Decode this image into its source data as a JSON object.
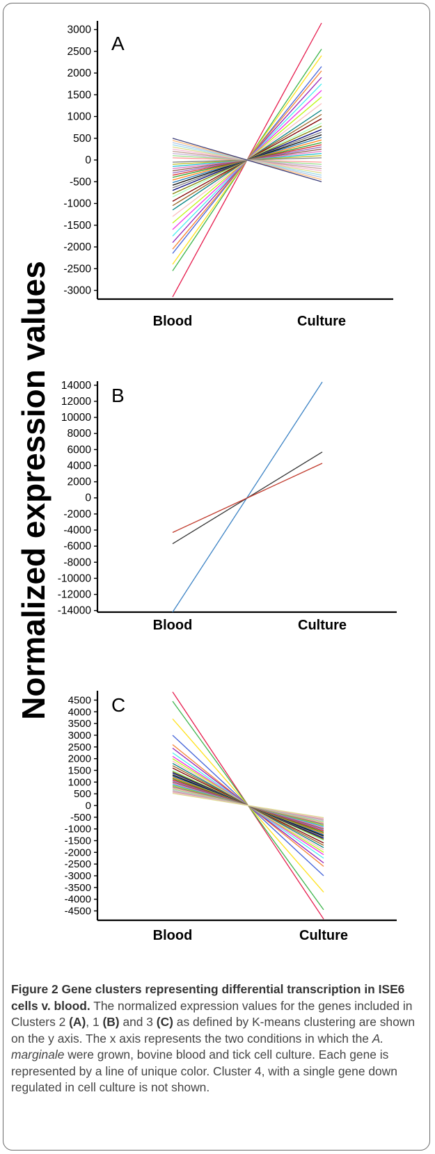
{
  "ylabel": "Normalized expression values",
  "charts": [
    {
      "panel": "A",
      "type": "line",
      "categories": [
        "Blood",
        "Culture"
      ],
      "ylim": [
        -3200,
        3200
      ],
      "ticks": [
        "3000",
        "2500",
        "2000",
        "1500",
        "1000",
        "500",
        "0",
        "-500",
        "-1000",
        "-1500",
        "-2000",
        "-2500",
        "-3000"
      ],
      "tick_values": [
        3000,
        2500,
        2000,
        1500,
        1000,
        500,
        0,
        -500,
        -1000,
        -1500,
        -2000,
        -2500,
        -3000
      ],
      "series_note": "many gene lines crossing at zero",
      "endpoints_culture": [
        3150,
        2550,
        2400,
        2150,
        2050,
        1900,
        1750,
        1600,
        1450,
        1300,
        1150,
        1050,
        950,
        850,
        780,
        700,
        640,
        580,
        520,
        460,
        400,
        350,
        300,
        250,
        200,
        150,
        100,
        50,
        -50,
        -100,
        -150,
        -200,
        -250,
        -300,
        -350,
        -400,
        -450,
        -500
      ]
    },
    {
      "panel": "B",
      "type": "line",
      "categories": [
        "Blood",
        "Culture"
      ],
      "ylim": [
        -14200,
        14500
      ],
      "ticks": [
        "14000",
        "12000",
        "10000",
        "8000",
        "6000",
        "4000",
        "2000",
        "0",
        "-2000",
        "-4000",
        "-6000",
        "-8000",
        "-10000",
        "-12000",
        "-14000"
      ],
      "tick_values": [
        14000,
        12000,
        10000,
        8000,
        6000,
        4000,
        2000,
        0,
        -2000,
        -4000,
        -6000,
        -8000,
        -10000,
        -12000,
        -14000
      ],
      "series": [
        {
          "color": "#3b82c4",
          "values": [
            -14200,
            14400
          ]
        },
        {
          "color": "#333333",
          "values": [
            -5700,
            5700
          ]
        },
        {
          "color": "#c0392b",
          "values": [
            -4300,
            4300
          ]
        }
      ]
    },
    {
      "panel": "C",
      "type": "line",
      "categories": [
        "Blood",
        "Culture"
      ],
      "ylim": [
        -4900,
        4900
      ],
      "ticks": [
        "4500",
        "4000",
        "3500",
        "3000",
        "2500",
        "2000",
        "1500",
        "1000",
        "500",
        "0",
        "-500",
        "-1000",
        "-1500",
        "-2000",
        "-2500",
        "-3000",
        "-3500",
        "-4000",
        "-4500"
      ],
      "tick_values": [
        4500,
        4000,
        3500,
        3000,
        2500,
        2000,
        1500,
        1000,
        500,
        0,
        -500,
        -1000,
        -1500,
        -2000,
        -2500,
        -3000,
        -3500,
        -4000,
        -4500
      ],
      "series_note": "many gene lines down regulated in culture",
      "endpoints_blood": [
        4850,
        4450,
        3700,
        3000,
        2600,
        2450,
        2250,
        2100,
        2000,
        1900,
        1800,
        1700,
        1600,
        1500,
        1450,
        1400,
        1350,
        1300,
        1250,
        1200,
        1150,
        1100,
        1050,
        1000,
        950,
        900,
        850,
        800,
        750,
        700,
        650,
        600,
        560,
        520
      ]
    }
  ],
  "caption": {
    "title": "Figure 2 Gene clusters representing differential transcription in ISE6 cells v. blood.",
    "t1": " The normalized expression values for the genes included in Clusters 2 ",
    "a": "(A)",
    "t2": ", 1 ",
    "b": "(B)",
    "t3": " and 3 ",
    "c": "(C)",
    "t4": " as defined by K-means clustering are shown on the y axis. The x axis represents the two conditions in which the ",
    "species": "A. marginale",
    "t5": " were grown, bovine blood and tick cell culture. Each gene is represented by a line of unique color. Cluster 4, with a single gene down regulated in cell culture is not shown."
  }
}
